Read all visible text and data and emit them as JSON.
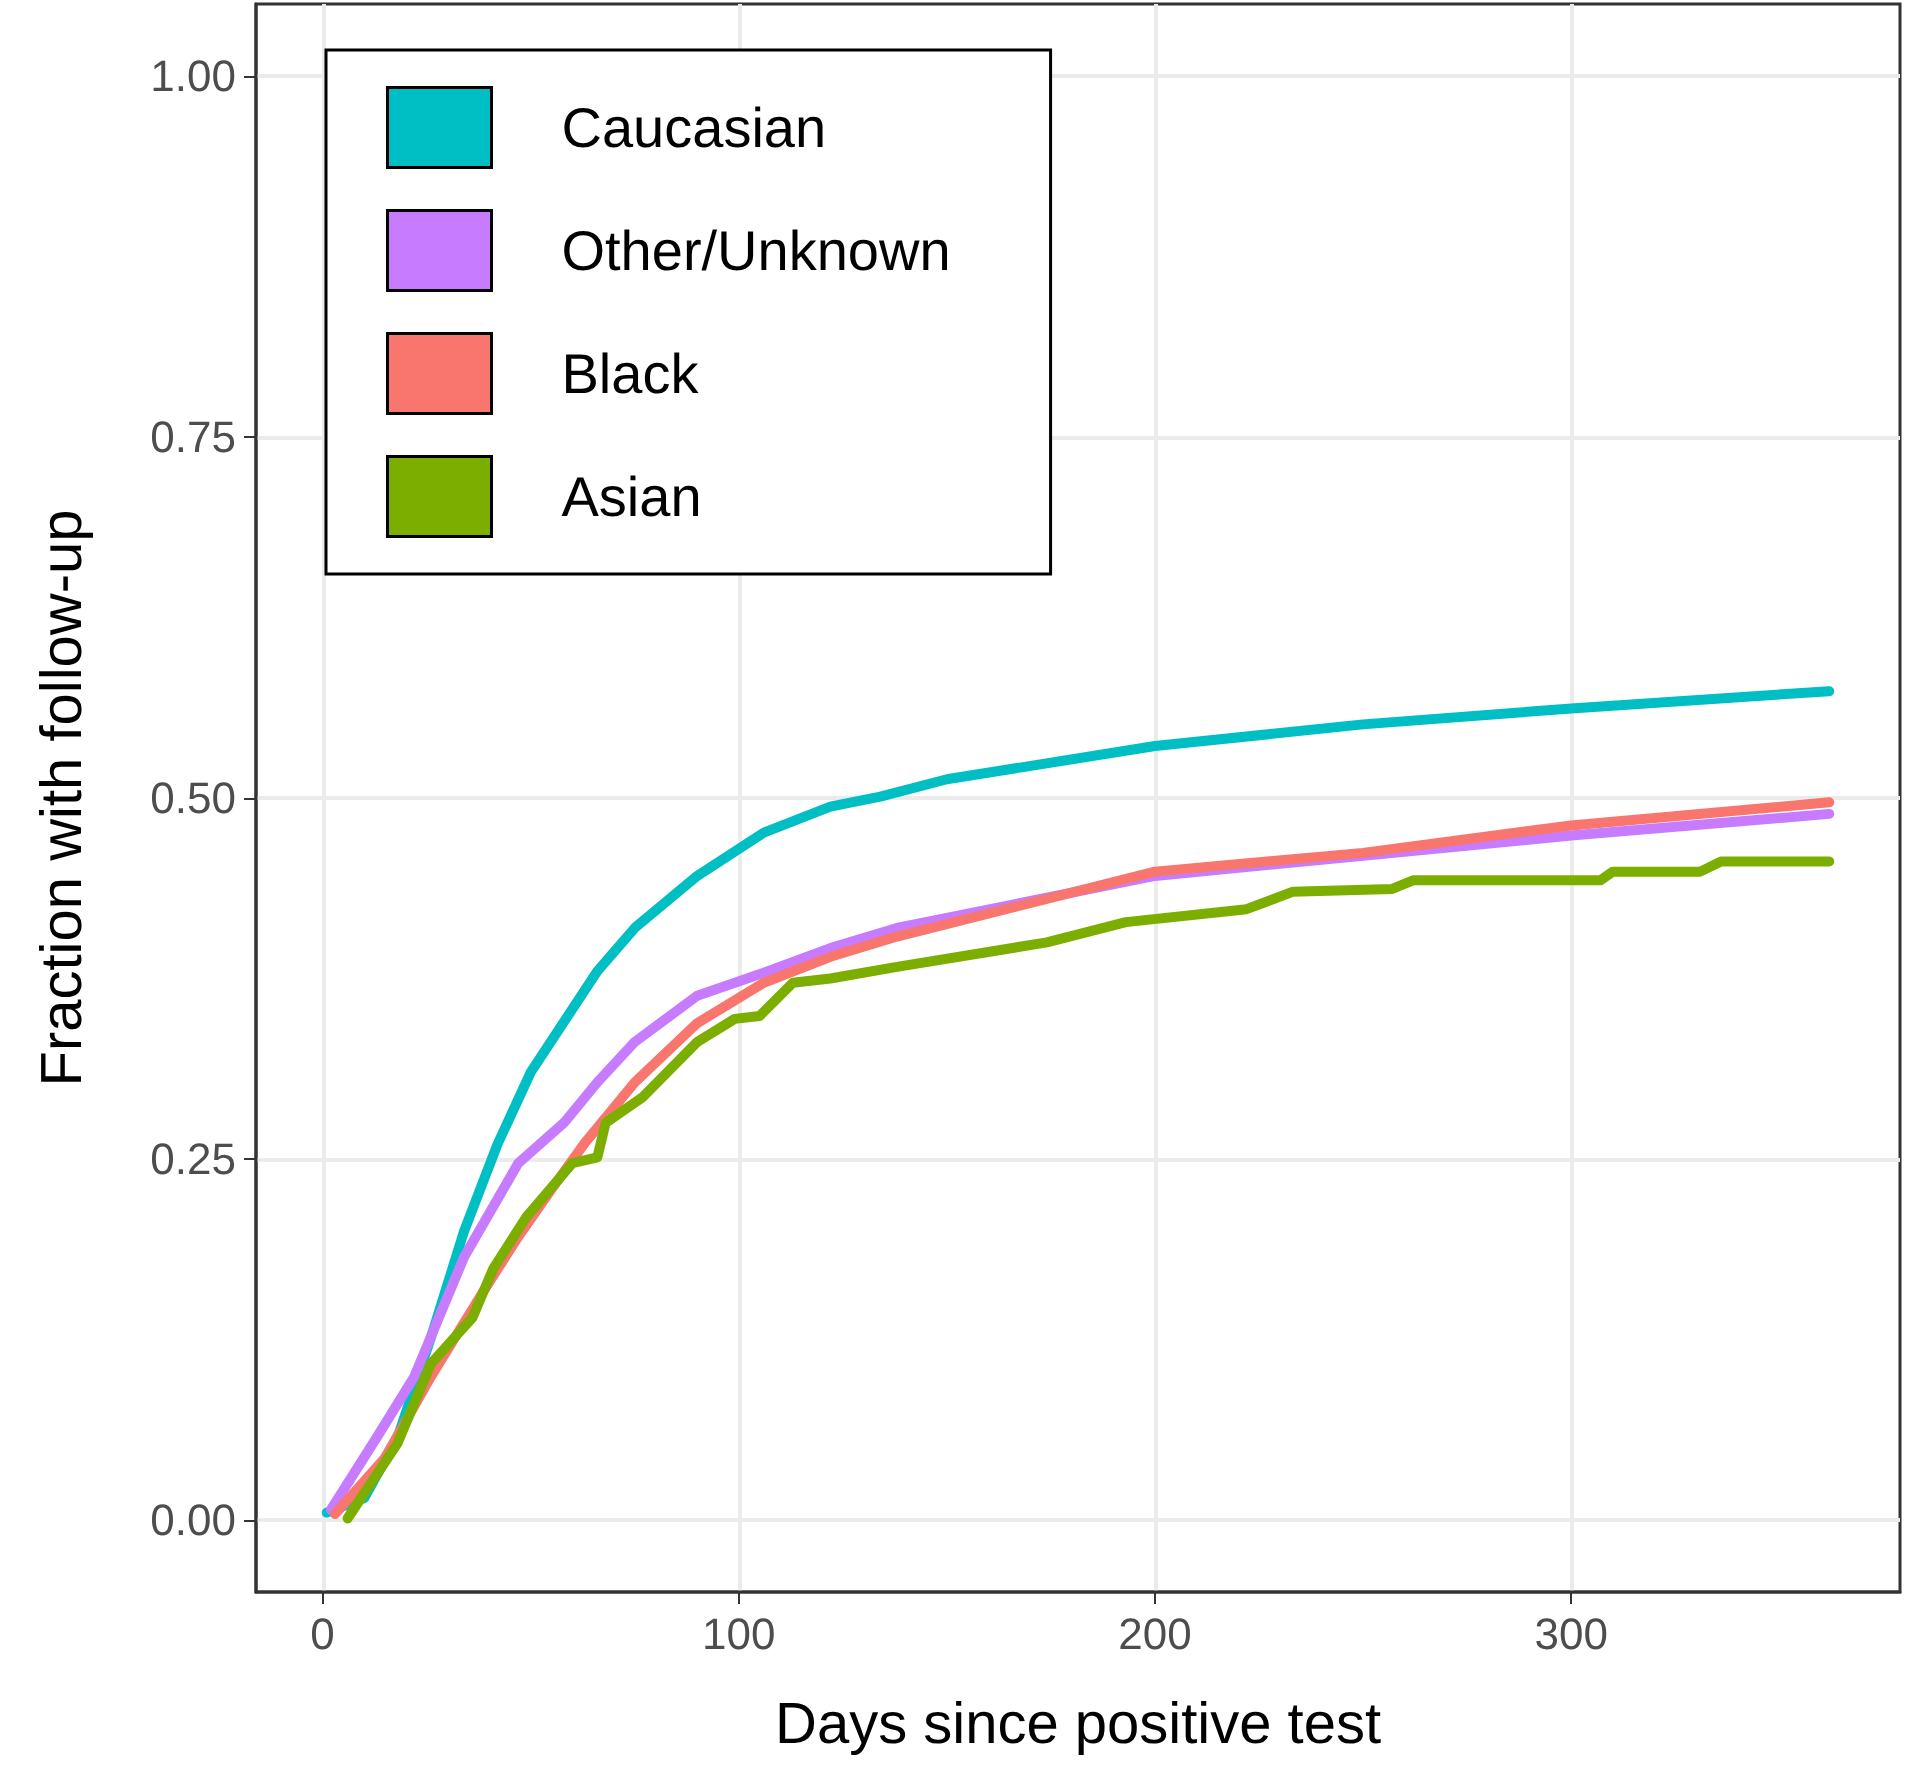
{
  "chart_data": {
    "type": "line",
    "xlabel": "Days since positive test",
    "ylabel": "Fraction with follow-up",
    "xlim": [
      -16,
      379
    ],
    "ylim": [
      -0.05,
      1.05
    ],
    "xticks": [
      0,
      100,
      200,
      300
    ],
    "yticks": [
      {
        "value": 0,
        "label": "0.00"
      },
      {
        "value": 0.25,
        "label": "0.25"
      },
      {
        "value": 0.5,
        "label": "0.50"
      },
      {
        "value": 0.75,
        "label": "0.75"
      },
      {
        "value": 1,
        "label": "1.00"
      }
    ],
    "grid": true,
    "legend": "top left",
    "marker": "none",
    "line_style": "solid",
    "series": [
      {
        "name": "Caucasian",
        "color": "#00bfc4",
        "x": [
          1,
          10,
          18,
          26,
          34,
          42,
          50,
          58,
          66,
          75,
          90,
          106,
          122,
          134,
          150,
          200,
          250,
          300,
          362
        ],
        "values": [
          0.005,
          0.015,
          0.057,
          0.126,
          0.2,
          0.26,
          0.31,
          0.345,
          0.38,
          0.41,
          0.446,
          0.476,
          0.494,
          0.501,
          0.513,
          0.536,
          0.551,
          0.562,
          0.574
        ]
      },
      {
        "name": "Other/Unknown",
        "color": "#c77cff",
        "x": [
          2,
          13,
          22,
          34,
          47,
          58,
          66,
          75,
          90,
          106,
          122,
          138,
          200,
          250,
          300,
          362
        ],
        "values": [
          0.007,
          0.057,
          0.099,
          0.182,
          0.247,
          0.275,
          0.303,
          0.331,
          0.363,
          0.379,
          0.396,
          0.41,
          0.446,
          0.46,
          0.474,
          0.489
        ]
      },
      {
        "name": "Black",
        "color": "#f8766d",
        "x": [
          3,
          15,
          26,
          39,
          47,
          55,
          63,
          75,
          90,
          106,
          122,
          138,
          200,
          250,
          300,
          362
        ],
        "values": [
          0.004,
          0.043,
          0.099,
          0.16,
          0.196,
          0.229,
          0.261,
          0.303,
          0.344,
          0.372,
          0.39,
          0.404,
          0.449,
          0.462,
          0.481,
          0.497
        ]
      },
      {
        "name": "Asian",
        "color": "#7cae00",
        "x": [
          6,
          18,
          26,
          36,
          41,
          49,
          60,
          66,
          68,
          77,
          90,
          99,
          105,
          113,
          122,
          138,
          174,
          193,
          222,
          233,
          257,
          262,
          307,
          310,
          331,
          336,
          362
        ],
        "values": [
          0.001,
          0.053,
          0.108,
          0.14,
          0.174,
          0.21,
          0.247,
          0.251,
          0.275,
          0.293,
          0.331,
          0.347,
          0.349,
          0.372,
          0.375,
          0.383,
          0.4,
          0.414,
          0.423,
          0.435,
          0.437,
          0.443,
          0.443,
          0.449,
          0.449,
          0.456,
          0.456
        ]
      }
    ]
  }
}
